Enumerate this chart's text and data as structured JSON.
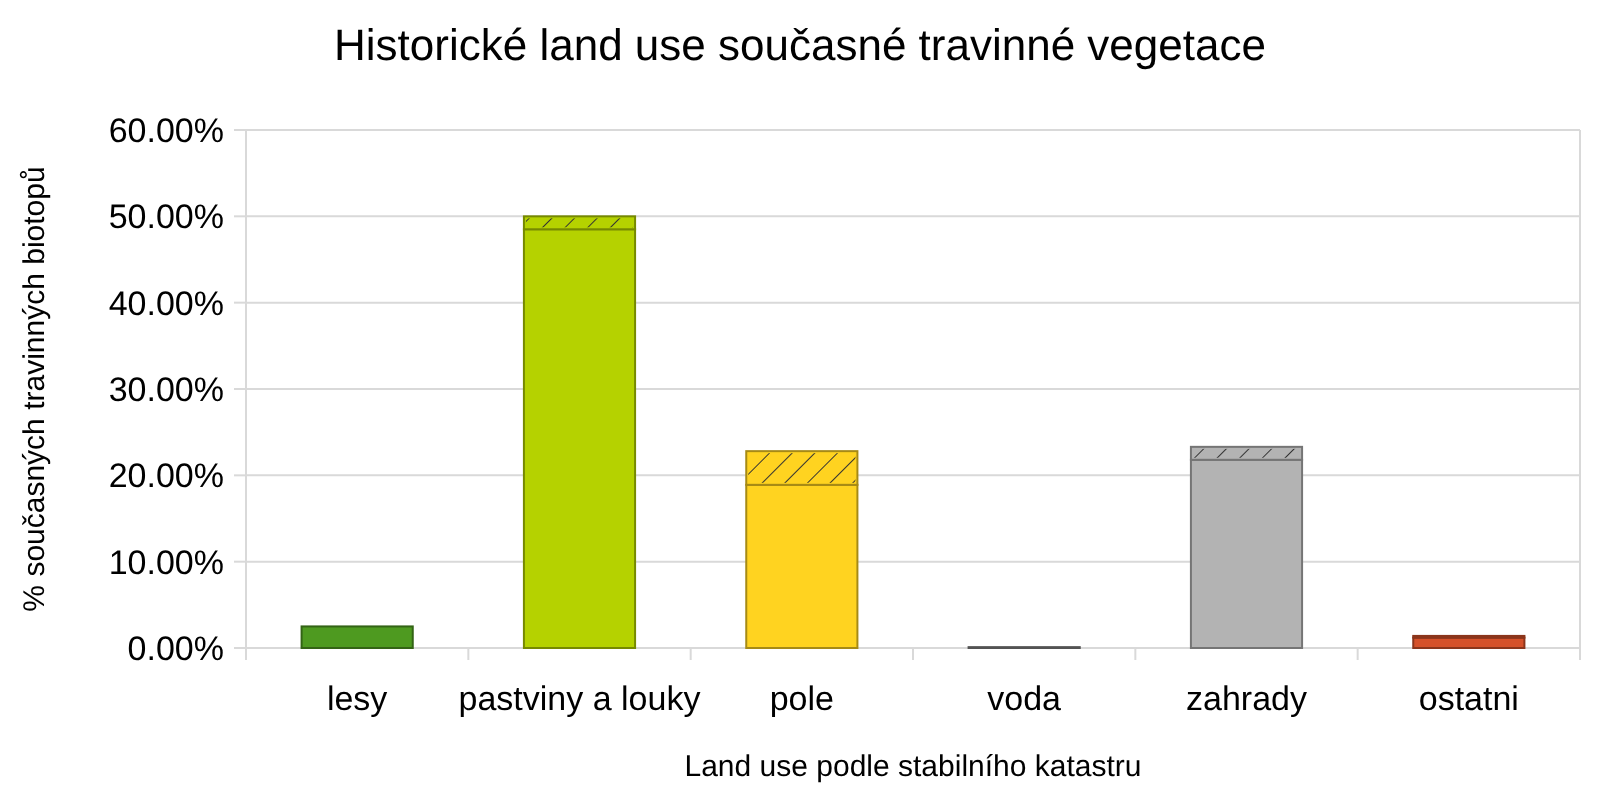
{
  "chart_data": {
    "type": "bar",
    "title": "Historické land use současné travinné vegetace",
    "xlabel": "Land use podle stabilního katastru",
    "ylabel": "% současných travinných biotopů",
    "categories": [
      "lesy",
      "pastviny a louky",
      "pole",
      "voda",
      "zahrady",
      "ostatni"
    ],
    "stacked": true,
    "series": [
      {
        "colors": [
          "#4e9a20",
          "#b5d200",
          "#ffd320",
          "#808080",
          "#b3b3b3",
          "#d5512a"
        ],
        "values": [
          2.5,
          48.5,
          18.9,
          0.1,
          21.8,
          1.2
        ]
      },
      {
        "colors": [
          "#4e9a20",
          "#b5d200",
          "#ffd320",
          "#808080",
          "#b3b3b3",
          "#d5512a"
        ],
        "values": [
          0,
          1.5,
          3.9,
          0,
          1.5,
          0.2
        ]
      }
    ],
    "ylim": [
      0,
      60
    ],
    "yticks": [
      {
        "value": 0,
        "label": "0.00%"
      },
      {
        "value": 10,
        "label": "10.00%"
      },
      {
        "value": 20,
        "label": "20.00%"
      },
      {
        "value": 30,
        "label": "30.00%"
      },
      {
        "value": 40,
        "label": "40.00%"
      },
      {
        "value": 50,
        "label": "50.00%"
      },
      {
        "value": 60,
        "label": "60.00%"
      }
    ],
    "grid": "y"
  }
}
